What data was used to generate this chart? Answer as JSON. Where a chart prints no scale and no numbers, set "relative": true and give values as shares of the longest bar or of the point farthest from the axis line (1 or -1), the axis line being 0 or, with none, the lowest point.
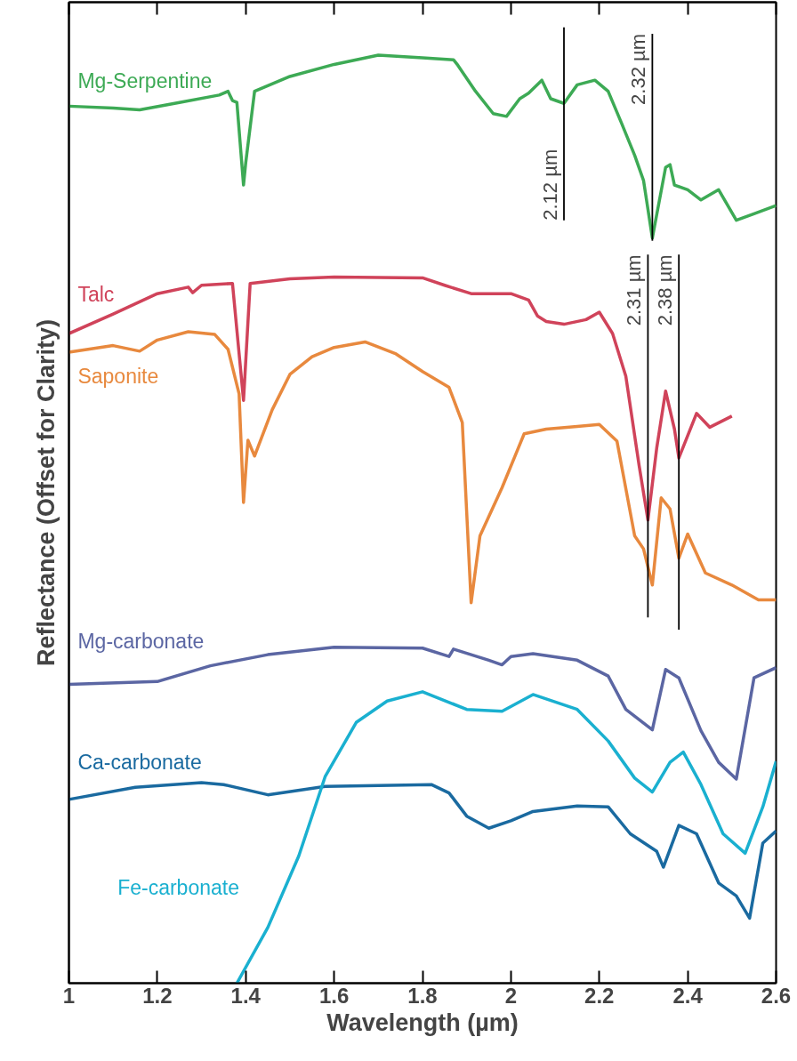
{
  "chart_data": {
    "type": "line",
    "relative": true,
    "xlabel": "Wavelength (µm)",
    "ylabel": "Reflectance (Offset for Clarity)",
    "xlim": [
      1,
      2.6
    ],
    "xticks": [
      1,
      1.2,
      1.4,
      1.6,
      1.8,
      2,
      2.2,
      2.4,
      2.6
    ],
    "grid": false,
    "marker": "none",
    "line_style": "solid",
    "series": [
      {
        "name": "Mg-Serpentine",
        "color": "#3daa55",
        "x": [
          1.0,
          1.1,
          1.16,
          1.25,
          1.34,
          1.36,
          1.37,
          1.38,
          1.395,
          1.4,
          1.42,
          1.5,
          1.6,
          1.7,
          1.8,
          1.87,
          1.88,
          1.92,
          1.96,
          1.99,
          2.02,
          2.04,
          2.07,
          2.09,
          2.12,
          2.15,
          2.19,
          2.22,
          2.25,
          2.28,
          2.3,
          2.32,
          2.35,
          2.36,
          2.37,
          2.4,
          2.43,
          2.47,
          2.51,
          2.55,
          2.6
        ],
        "values": [
          0.945,
          0.943,
          0.941,
          0.949,
          0.957,
          0.961,
          0.951,
          0.949,
          0.86,
          0.884,
          0.961,
          0.977,
          0.99,
          1.0,
          0.997,
          0.995,
          0.989,
          0.961,
          0.937,
          0.934,
          0.953,
          0.959,
          0.973,
          0.953,
          0.948,
          0.968,
          0.973,
          0.961,
          0.927,
          0.892,
          0.865,
          0.803,
          0.879,
          0.882,
          0.86,
          0.855,
          0.844,
          0.855,
          0.822,
          0.829,
          0.838
        ]
      },
      {
        "name": "Talc",
        "color": "#d0435a",
        "x": [
          1.0,
          1.1,
          1.2,
          1.27,
          1.28,
          1.3,
          1.37,
          1.395,
          1.41,
          1.5,
          1.6,
          1.8,
          1.85,
          1.91,
          2.0,
          2.04,
          2.06,
          2.08,
          2.12,
          2.17,
          2.2,
          2.23,
          2.26,
          2.29,
          2.31,
          2.33,
          2.35,
          2.37,
          2.38,
          2.42,
          2.45,
          2.5
        ],
        "values": [
          0.7,
          0.721,
          0.743,
          0.75,
          0.744,
          0.752,
          0.754,
          0.628,
          0.754,
          0.759,
          0.761,
          0.76,
          0.752,
          0.743,
          0.743,
          0.736,
          0.719,
          0.713,
          0.71,
          0.715,
          0.723,
          0.7,
          0.654,
          0.558,
          0.499,
          0.577,
          0.638,
          0.597,
          0.566,
          0.614,
          0.599,
          0.611
        ]
      },
      {
        "name": "Saponite",
        "color": "#e8893e",
        "x": [
          1.0,
          1.1,
          1.16,
          1.2,
          1.27,
          1.33,
          1.36,
          1.385,
          1.395,
          1.405,
          1.42,
          1.46,
          1.5,
          1.55,
          1.6,
          1.67,
          1.74,
          1.8,
          1.86,
          1.89,
          1.91,
          1.93,
          1.98,
          2.03,
          2.08,
          2.15,
          2.2,
          2.24,
          2.28,
          2.3,
          2.32,
          2.34,
          2.36,
          2.38,
          2.4,
          2.44,
          2.5,
          2.56,
          2.6
        ],
        "values": [
          0.68,
          0.687,
          0.681,
          0.693,
          0.702,
          0.699,
          0.683,
          0.635,
          0.518,
          0.585,
          0.568,
          0.618,
          0.656,
          0.675,
          0.685,
          0.691,
          0.678,
          0.659,
          0.642,
          0.604,
          0.41,
          0.482,
          0.534,
          0.592,
          0.597,
          0.6,
          0.602,
          0.584,
          0.482,
          0.468,
          0.429,
          0.523,
          0.511,
          0.458,
          0.484,
          0.442,
          0.429,
          0.413,
          0.413
        ]
      },
      {
        "name": "Mg-carbonate",
        "color": "#5b66a3",
        "x": [
          1.0,
          1.2,
          1.32,
          1.45,
          1.6,
          1.8,
          1.86,
          1.87,
          1.95,
          1.98,
          2.0,
          2.05,
          2.15,
          2.22,
          2.26,
          2.32,
          2.35,
          2.38,
          2.43,
          2.47,
          2.51,
          2.55,
          2.6
        ],
        "values": [
          0.322,
          0.325,
          0.342,
          0.354,
          0.362,
          0.361,
          0.352,
          0.36,
          0.348,
          0.343,
          0.352,
          0.355,
          0.348,
          0.331,
          0.295,
          0.273,
          0.338,
          0.329,
          0.272,
          0.238,
          0.22,
          0.329,
          0.34
        ]
      },
      {
        "name": "Ca-carbonate",
        "color": "#1a6aa0",
        "x": [
          1.0,
          1.15,
          1.3,
          1.35,
          1.45,
          1.58,
          1.7,
          1.82,
          1.86,
          1.9,
          1.95,
          2.0,
          2.05,
          2.15,
          2.22,
          2.27,
          2.33,
          2.345,
          2.38,
          2.42,
          2.47,
          2.51,
          2.54,
          2.57,
          2.6
        ],
        "values": [
          0.198,
          0.211,
          0.216,
          0.214,
          0.203,
          0.212,
          0.213,
          0.214,
          0.205,
          0.18,
          0.167,
          0.175,
          0.185,
          0.191,
          0.19,
          0.161,
          0.142,
          0.125,
          0.17,
          0.161,
          0.108,
          0.094,
          0.07,
          0.151,
          0.164
        ]
      },
      {
        "name": "Fe-carbonate",
        "color": "#1ab0d0",
        "x": [
          1.38,
          1.45,
          1.52,
          1.58,
          1.65,
          1.72,
          1.8,
          1.9,
          1.98,
          2.05,
          2.15,
          2.22,
          2.28,
          2.32,
          2.36,
          2.39,
          2.43,
          2.48,
          2.53,
          2.57,
          2.6
        ],
        "values": [
          0.0,
          0.06,
          0.137,
          0.223,
          0.281,
          0.304,
          0.314,
          0.295,
          0.293,
          0.311,
          0.295,
          0.261,
          0.221,
          0.206,
          0.238,
          0.249,
          0.214,
          0.161,
          0.14,
          0.19,
          0.239
        ]
      }
    ],
    "ref_lines": [
      {
        "axis": "x",
        "value": 2.12,
        "label": "2.12 µm",
        "color": "#000000"
      },
      {
        "axis": "x",
        "value": 2.32,
        "label": "2.32 µm",
        "color": "#000000"
      },
      {
        "axis": "x",
        "value": 2.31,
        "label": "2.31 µm",
        "color": "#000000"
      },
      {
        "axis": "x",
        "value": 2.38,
        "label": "2.38 µm",
        "color": "#000000"
      }
    ]
  }
}
